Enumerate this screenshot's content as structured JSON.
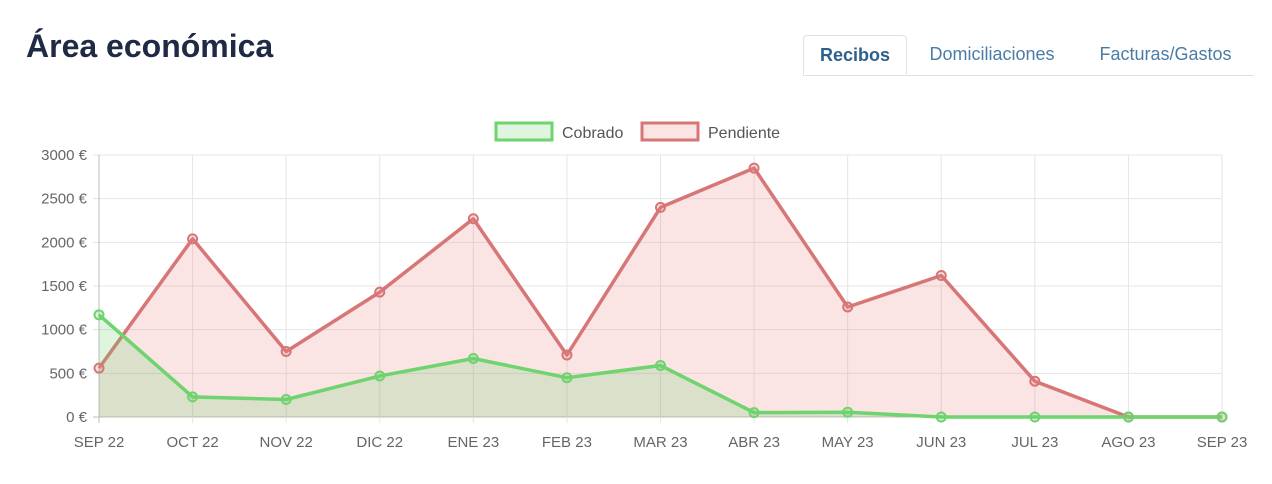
{
  "header": {
    "title": "Área económica"
  },
  "tabs": [
    {
      "label": "Recibos",
      "active": true
    },
    {
      "label": "Domiciliaciones",
      "active": false
    },
    {
      "label": "Facturas/Gastos",
      "active": false
    }
  ],
  "chart_data": {
    "type": "area",
    "categories": [
      "SEP 22",
      "OCT 22",
      "NOV 22",
      "DIC 22",
      "ENE 23",
      "FEB 23",
      "MAR 23",
      "ABR 23",
      "MAY 23",
      "JUN 23",
      "JUL 23",
      "AGO 23",
      "SEP 23"
    ],
    "y_ticks": [
      "0 €",
      "500 €",
      "1000 €",
      "1500 €",
      "2000 €",
      "2500 €",
      "3000 €"
    ],
    "ylim": [
      0,
      3000
    ],
    "grid": true,
    "legend_position": "top",
    "series": [
      {
        "name": "Cobrado",
        "color": "#6fd36f",
        "fill": "rgba(110, 210, 110, 0.22)",
        "values": [
          1170,
          230,
          200,
          470,
          670,
          450,
          590,
          50,
          55,
          0,
          0,
          0,
          0
        ]
      },
      {
        "name": "Pendiente",
        "color": "#d77676",
        "fill": "rgba(230, 130, 130, 0.22)",
        "values": [
          560,
          2040,
          750,
          1430,
          2270,
          710,
          2400,
          2850,
          1260,
          1620,
          410,
          0,
          0
        ]
      }
    ]
  }
}
